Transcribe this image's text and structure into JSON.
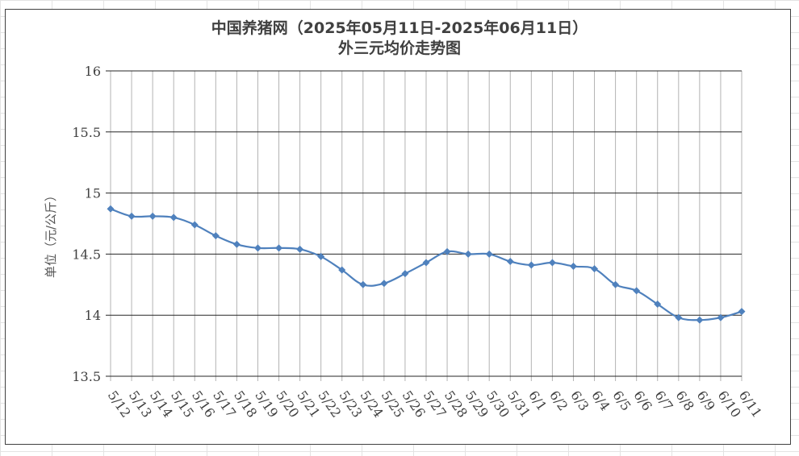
{
  "chart_data": {
    "type": "line",
    "title_line1": "中国养猪网（2025年05月11日-2025年06月11日）",
    "title_line2": "外三元均价走势图",
    "ylabel": "单位（元/公斤）",
    "xlabel": "",
    "ylim": [
      13.5,
      16
    ],
    "yticks": [
      "16",
      "15.5",
      "15",
      "14.5",
      "14",
      "13.5"
    ],
    "ytick_values": [
      16,
      15.5,
      15,
      14.5,
      14,
      13.5
    ],
    "grid": {
      "horizontal": true,
      "vertical": true
    },
    "line_color": "#4f81bd",
    "marker_color": "#4f81bd",
    "categories": [
      "5/12",
      "5/13",
      "5/14",
      "5/15",
      "5/16",
      "5/17",
      "5/18",
      "5/19",
      "5/20",
      "5/21",
      "5/22",
      "5/23",
      "5/24",
      "5/25",
      "5/26",
      "5/27",
      "5/28",
      "5/29",
      "5/30",
      "5/31",
      "6/1",
      "6/2",
      "6/3",
      "6/4",
      "6/5",
      "6/6",
      "6/7",
      "6/8",
      "6/9",
      "6/10",
      "6/11"
    ],
    "values": [
      14.87,
      14.81,
      14.81,
      14.8,
      14.74,
      14.65,
      14.58,
      14.55,
      14.55,
      14.54,
      14.48,
      14.37,
      14.25,
      14.26,
      14.34,
      14.43,
      14.52,
      14.5,
      14.5,
      14.44,
      14.41,
      14.43,
      14.4,
      14.38,
      14.25,
      14.2,
      14.09,
      13.98,
      13.96,
      13.98,
      14.03
    ]
  }
}
